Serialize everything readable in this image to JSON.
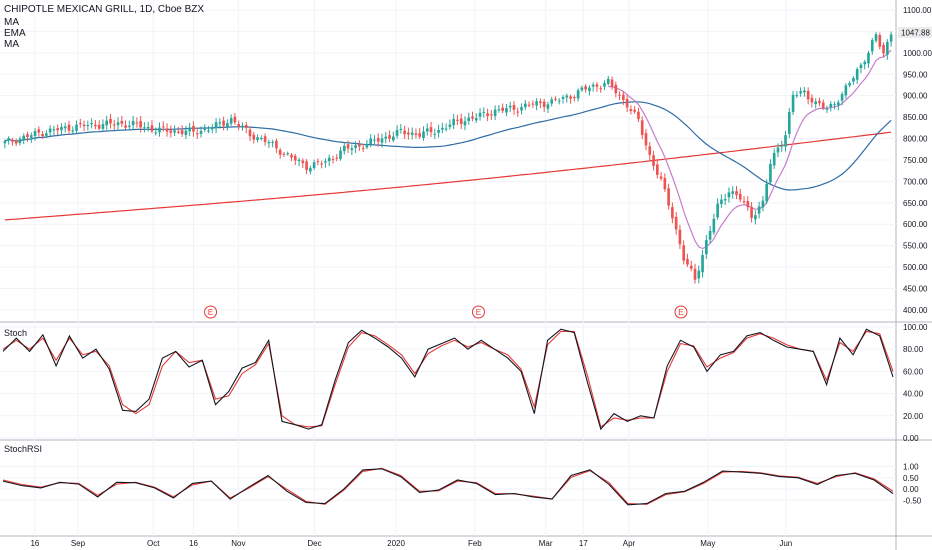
{
  "chart_data": {
    "type": "candlestick",
    "legend": {
      "title": "CHIPOTLE MEXICAN GRILL, 1D, Cboe BZX",
      "indicators": [
        "MA",
        "EMA",
        "MA"
      ]
    },
    "last_price_label": "1047.88",
    "price_ticks": [
      "1100.00",
      "1050.00",
      "1000.00",
      "950.00",
      "900.00",
      "850.00",
      "800.00",
      "750.00",
      "700.00",
      "650.00",
      "600.00",
      "550.00",
      "500.00",
      "450.00",
      "400.00"
    ],
    "stoch_ticks": [
      "100.00",
      "80.00",
      "60.00",
      "40.00",
      "20.00",
      "0.00"
    ],
    "stochrsi_ticks": [
      "1.00",
      "0.50",
      "0.00",
      "-0.50"
    ],
    "x_ticks": [
      {
        "label": "16",
        "at": 0.039
      },
      {
        "label": "Sep",
        "at": 0.087
      },
      {
        "label": "Oct",
        "at": 0.171
      },
      {
        "label": "16",
        "at": 0.216
      },
      {
        "label": "Nov",
        "at": 0.266
      },
      {
        "label": "Dec",
        "at": 0.351
      },
      {
        "label": "2020",
        "at": 0.442
      },
      {
        "label": "Feb",
        "at": 0.53
      },
      {
        "label": "Mar",
        "at": 0.609
      },
      {
        "label": "17",
        "at": 0.651
      },
      {
        "label": "Apr",
        "at": 0.702
      },
      {
        "label": "May",
        "at": 0.79
      },
      {
        "label": "Jun",
        "at": 0.877
      }
    ],
    "earnings_label": "E",
    "earnings_at": [
      0.235,
      0.534,
      0.76
    ],
    "pane_labels": [
      "Stoch",
      "StochRSI"
    ],
    "price_range": [
      400,
      1100
    ],
    "stoch_range": [
      0,
      100
    ],
    "stochrsi_range": [
      -0.85,
      1.0
    ],
    "candle_count": 200,
    "close_anchors": [
      [
        0,
        790
      ],
      [
        10,
        815
      ],
      [
        20,
        830
      ],
      [
        30,
        835
      ],
      [
        35,
        832
      ],
      [
        40,
        820
      ],
      [
        50,
        815
      ],
      [
        55,
        825
      ],
      [
        60,
        845
      ],
      [
        65,
        810
      ],
      [
        70,
        790
      ],
      [
        75,
        760
      ],
      [
        80,
        735
      ],
      [
        85,
        745
      ],
      [
        90,
        775
      ],
      [
        95,
        785
      ],
      [
        100,
        800
      ],
      [
        105,
        815
      ],
      [
        110,
        810
      ],
      [
        115,
        820
      ],
      [
        120,
        840
      ],
      [
        125,
        850
      ],
      [
        130,
        865
      ],
      [
        135,
        870
      ],
      [
        140,
        880
      ],
      [
        145,
        885
      ],
      [
        150,
        900
      ],
      [
        155,
        920
      ],
      [
        160,
        930
      ],
      [
        165,
        880
      ],
      [
        168,
        840
      ],
      [
        171,
        760
      ],
      [
        174,
        700
      ],
      [
        177,
        620
      ],
      [
        180,
        520
      ],
      [
        183,
        470
      ],
      [
        186,
        560
      ],
      [
        189,
        640
      ],
      [
        192,
        680
      ],
      [
        195,
        660
      ],
      [
        198,
        620
      ],
      [
        201,
        650
      ],
      [
        203,
        740
      ],
      [
        205,
        780
      ],
      [
        207,
        810
      ],
      [
        209,
        900
      ],
      [
        212,
        910
      ],
      [
        215,
        880
      ],
      [
        218,
        870
      ],
      [
        222,
        900
      ],
      [
        226,
        960
      ],
      [
        229,
        1000
      ],
      [
        231,
        1040
      ],
      [
        233,
        1000
      ],
      [
        235,
        1047.88
      ]
    ],
    "stoch_k": [
      78,
      90,
      78,
      93,
      65,
      92,
      72,
      80,
      62,
      25,
      24,
      35,
      72,
      78,
      64,
      70,
      30,
      42,
      63,
      68,
      88,
      15,
      12,
      8,
      12,
      52,
      86,
      97,
      90,
      82,
      72,
      55,
      80,
      85,
      90,
      80,
      88,
      80,
      72,
      60,
      22,
      88,
      98,
      95,
      50,
      8,
      22,
      15,
      20,
      18,
      65,
      88,
      82,
      60,
      75,
      78,
      92,
      95,
      88,
      82,
      80,
      78,
      48,
      90,
      75,
      98,
      92,
      55
    ],
    "stoch_d": [
      80,
      88,
      80,
      90,
      70,
      90,
      75,
      78,
      65,
      30,
      22,
      30,
      65,
      78,
      68,
      70,
      35,
      38,
      58,
      66,
      85,
      20,
      12,
      10,
      11,
      48,
      82,
      95,
      92,
      84,
      75,
      58,
      76,
      83,
      88,
      82,
      86,
      80,
      75,
      62,
      28,
      84,
      96,
      96,
      56,
      10,
      18,
      16,
      18,
      18,
      60,
      85,
      83,
      64,
      72,
      77,
      90,
      94,
      90,
      84,
      80,
      78,
      52,
      86,
      78,
      96,
      94,
      60
    ],
    "stochrsi_k": [
      0.35,
      0.15,
      0.05,
      0.3,
      0.22,
      -0.35,
      0.3,
      0.28,
      0.05,
      -0.4,
      0.25,
      0.35,
      -0.45,
      0.1,
      0.6,
      -0.1,
      -0.6,
      -0.65,
      0.0,
      0.85,
      0.9,
      0.55,
      -0.15,
      -0.05,
      0.4,
      0.25,
      -0.25,
      -0.2,
      -0.35,
      -0.45,
      0.6,
      0.85,
      0.2,
      -0.7,
      -0.65,
      -0.2,
      -0.1,
      0.3,
      0.8,
      0.75,
      0.7,
      0.55,
      0.5,
      0.2,
      0.6,
      0.7,
      0.4,
      -0.2
    ],
    "stochrsi_d": [
      0.4,
      0.2,
      0.08,
      0.28,
      0.25,
      -0.28,
      0.22,
      0.3,
      0.08,
      -0.35,
      0.18,
      0.35,
      -0.4,
      0.05,
      0.55,
      -0.02,
      -0.55,
      -0.68,
      -0.05,
      0.78,
      0.92,
      0.6,
      -0.1,
      -0.08,
      0.35,
      0.28,
      -0.2,
      -0.22,
      -0.32,
      -0.44,
      0.52,
      0.82,
      0.28,
      -0.65,
      -0.68,
      -0.25,
      -0.12,
      0.25,
      0.75,
      0.78,
      0.72,
      0.58,
      0.52,
      0.25,
      0.55,
      0.72,
      0.45,
      -0.1
    ]
  }
}
